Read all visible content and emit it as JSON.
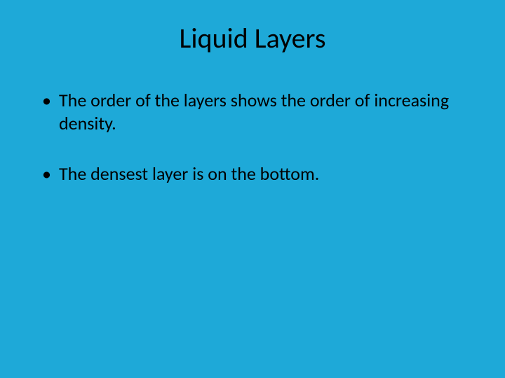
{
  "slide": {
    "title": "Liquid Layers",
    "bullets": [
      "The order of the layers shows the order of increasing density.",
      "The densest layer is on the bottom."
    ],
    "background_color": "#1ea9d8",
    "text_color": "#000000",
    "title_fontsize": 40,
    "bullet_fontsize": 26,
    "font_family": "Calibri, Arial, sans-serif"
  }
}
